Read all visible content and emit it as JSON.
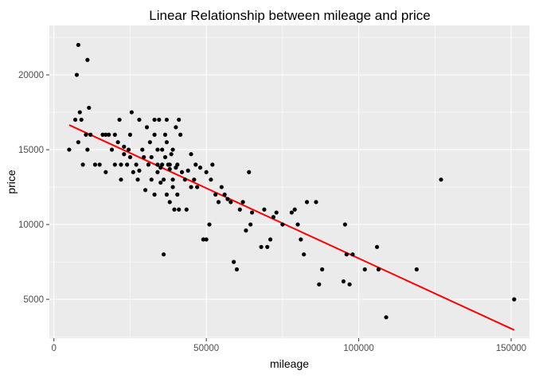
{
  "chart_data": {
    "type": "scatter",
    "title": "Linear Relationship between mileage and price",
    "xlabel": "mileage",
    "ylabel": "price",
    "xlim": [
      -1500,
      156000
    ],
    "ylim": [
      2400,
      23300
    ],
    "x_ticks": [
      0,
      50000,
      100000,
      150000
    ],
    "y_ticks": [
      5000,
      10000,
      15000,
      20000
    ],
    "x_tick_labels": [
      "0",
      "50000",
      "100000",
      "150000"
    ],
    "y_tick_labels": [
      "5000",
      "10000",
      "15000",
      "20000"
    ],
    "grid": true,
    "panel_background": "#ebebeb",
    "point_color": "#000000",
    "fit_line": {
      "color": "#ff0000",
      "x": [
        5000,
        151000
      ],
      "y": [
        16650,
        2950
      ]
    },
    "points": [
      [
        5000,
        15000
      ],
      [
        7000,
        17000
      ],
      [
        7500,
        20000
      ],
      [
        8000,
        22000
      ],
      [
        8000,
        15500
      ],
      [
        8500,
        17500
      ],
      [
        9000,
        17000
      ],
      [
        9500,
        14000
      ],
      [
        10500,
        16000
      ],
      [
        11000,
        15000
      ],
      [
        11000,
        21000
      ],
      [
        11500,
        17800
      ],
      [
        12000,
        16000
      ],
      [
        13500,
        14000
      ],
      [
        15000,
        14000
      ],
      [
        16000,
        16000
      ],
      [
        17000,
        16000
      ],
      [
        17000,
        13500
      ],
      [
        18000,
        16000
      ],
      [
        19000,
        15000
      ],
      [
        20000,
        16000
      ],
      [
        20000,
        14000
      ],
      [
        21000,
        15500
      ],
      [
        21500,
        17000
      ],
      [
        22000,
        14000
      ],
      [
        22000,
        13000
      ],
      [
        23000,
        15200
      ],
      [
        23000,
        14700
      ],
      [
        24000,
        14000
      ],
      [
        24500,
        15000
      ],
      [
        25000,
        16000
      ],
      [
        25000,
        14500
      ],
      [
        25500,
        17500
      ],
      [
        26000,
        13500
      ],
      [
        27000,
        14000
      ],
      [
        27500,
        13000
      ],
      [
        28000,
        17000
      ],
      [
        28000,
        13600
      ],
      [
        29000,
        15000
      ],
      [
        29500,
        14500
      ],
      [
        30000,
        12300
      ],
      [
        30500,
        16500
      ],
      [
        31000,
        14000
      ],
      [
        31500,
        15500
      ],
      [
        32000,
        13000
      ],
      [
        32000,
        14500
      ],
      [
        33000,
        16000
      ],
      [
        33000,
        17000
      ],
      [
        33000,
        12000
      ],
      [
        34000,
        13500
      ],
      [
        34000,
        14000
      ],
      [
        34000,
        15000
      ],
      [
        34500,
        17000
      ],
      [
        35000,
        12800
      ],
      [
        35000,
        13800
      ],
      [
        35500,
        15000
      ],
      [
        35500,
        14000
      ],
      [
        36000,
        8000
      ],
      [
        36000,
        13000
      ],
      [
        36500,
        14500
      ],
      [
        36500,
        16000
      ],
      [
        37000,
        17000
      ],
      [
        37000,
        12000
      ],
      [
        37000,
        15500
      ],
      [
        37500,
        14000
      ],
      [
        38000,
        13700
      ],
      [
        38000,
        11500
      ],
      [
        38000,
        14000
      ],
      [
        38500,
        14700
      ],
      [
        39000,
        15000
      ],
      [
        39000,
        12500
      ],
      [
        39000,
        13000
      ],
      [
        39500,
        11000
      ],
      [
        40000,
        16500
      ],
      [
        40000,
        13800
      ],
      [
        40500,
        14000
      ],
      [
        40500,
        12000
      ],
      [
        41000,
        17000
      ],
      [
        41000,
        11000
      ],
      [
        41500,
        16000
      ],
      [
        42000,
        13500
      ],
      [
        43000,
        13000
      ],
      [
        43500,
        11000
      ],
      [
        44000,
        13600
      ],
      [
        45000,
        12500
      ],
      [
        45000,
        14700
      ],
      [
        46000,
        13000
      ],
      [
        46500,
        14000
      ],
      [
        47000,
        12500
      ],
      [
        48000,
        13800
      ],
      [
        49000,
        9000
      ],
      [
        50000,
        9000
      ],
      [
        50000,
        13500
      ],
      [
        51000,
        10000
      ],
      [
        51500,
        13000
      ],
      [
        52000,
        14000
      ],
      [
        53000,
        12000
      ],
      [
        54000,
        11500
      ],
      [
        55000,
        12500
      ],
      [
        56000,
        12000
      ],
      [
        57000,
        11700
      ],
      [
        58000,
        11500
      ],
      [
        59000,
        7500
      ],
      [
        60000,
        7000
      ],
      [
        61000,
        11000
      ],
      [
        62000,
        11500
      ],
      [
        63000,
        9600
      ],
      [
        64000,
        13500
      ],
      [
        64500,
        10000
      ],
      [
        65000,
        10800
      ],
      [
        68000,
        8500
      ],
      [
        69000,
        11000
      ],
      [
        70000,
        8500
      ],
      [
        71000,
        9000
      ],
      [
        72000,
        10500
      ],
      [
        73000,
        10800
      ],
      [
        75000,
        10000
      ],
      [
        78000,
        10800
      ],
      [
        79000,
        11000
      ],
      [
        80000,
        10000
      ],
      [
        81000,
        9000
      ],
      [
        82000,
        8000
      ],
      [
        83000,
        11500
      ],
      [
        86000,
        11500
      ],
      [
        87000,
        6000
      ],
      [
        88000,
        7000
      ],
      [
        95000,
        6200
      ],
      [
        95500,
        10000
      ],
      [
        96000,
        8000
      ],
      [
        97000,
        6000
      ],
      [
        98000,
        8000
      ],
      [
        102000,
        7000
      ],
      [
        106000,
        8500
      ],
      [
        106500,
        7000
      ],
      [
        109000,
        3800
      ],
      [
        119000,
        7000
      ],
      [
        127000,
        13000
      ],
      [
        151000,
        5000
      ]
    ]
  }
}
